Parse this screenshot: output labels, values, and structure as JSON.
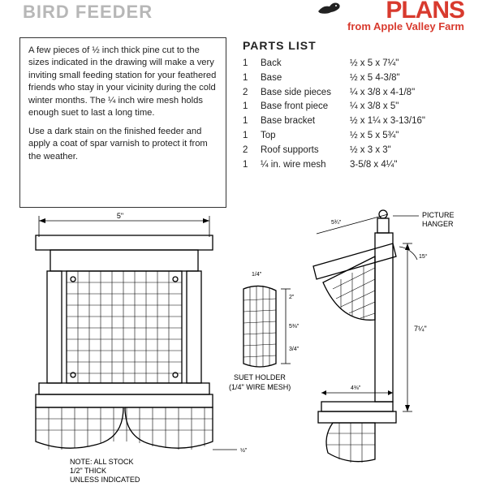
{
  "header": {
    "title_left": "BIRD FEEDER",
    "logo_main": "PLANS",
    "logo_sub": "from Apple Valley Farm",
    "logo_color": "#d83a2e",
    "bird_color": "#222222"
  },
  "description": {
    "para1": "A few pieces of ½ inch thick pine cut to the sizes indicated in the drawing will make a very inviting small feeding station for your feathered friends who stay in your vicinity during the cold winter months. The ¼ inch wire mesh holds enough suet to last a long time.",
    "para2": "Use a dark stain on the finished feeder and apply a coat of spar varnish to protect it from the weather."
  },
  "parts": {
    "title": "PARTS LIST",
    "rows": [
      {
        "qty": "1",
        "name": "Back",
        "dim": "½ x 5 x 7¼\""
      },
      {
        "qty": "1",
        "name": "Base",
        "dim": "½  x 5 4-3/8\""
      },
      {
        "qty": "2",
        "name": "Base side pieces",
        "dim": "¼ x 3/8 x 4-1/8\""
      },
      {
        "qty": "1",
        "name": "Base front piece",
        "dim": "¼ x 3/8 x 5\""
      },
      {
        "qty": "1",
        "name": "Base bracket",
        "dim": "½ x 1¼ x 3-13/16\""
      },
      {
        "qty": "1",
        "name": "Top",
        "dim": "½ x 5 x 5¾\""
      },
      {
        "qty": "2",
        "name": "Roof supports",
        "dim": "½ x 3 x 3\""
      },
      {
        "qty": "1",
        "name": "¼ in. wire mesh",
        "dim": "3-5/8 x 4¼\""
      }
    ]
  },
  "diagram": {
    "labels": {
      "width_top": "5\"",
      "suet_holder_t": "SUET HOLDER",
      "suet_holder_b": "(1/4\" WIRE MESH)",
      "note_l1": "NOTE: ALL STOCK",
      "note_l2": "1/2\" THICK",
      "note_l3": "UNLESS INDICATED",
      "picture_hanger_t": "PICTURE",
      "picture_hanger_b": "HANGER",
      "side_h": "7¼\"",
      "roof_w": "5¾\"",
      "angle": "15°",
      "half": "½\"",
      "two": "2\"",
      "f14": "1/4\"",
      "q34": "3/4\"",
      "base_w": "4⅜\"",
      "mesh_h": "5⅜\""
    },
    "colors": {
      "line": "#000000",
      "bg": "#ffffff"
    },
    "stroke_main": 1.3,
    "stroke_thin": 0.8,
    "stroke_mesh": 0.6
  }
}
